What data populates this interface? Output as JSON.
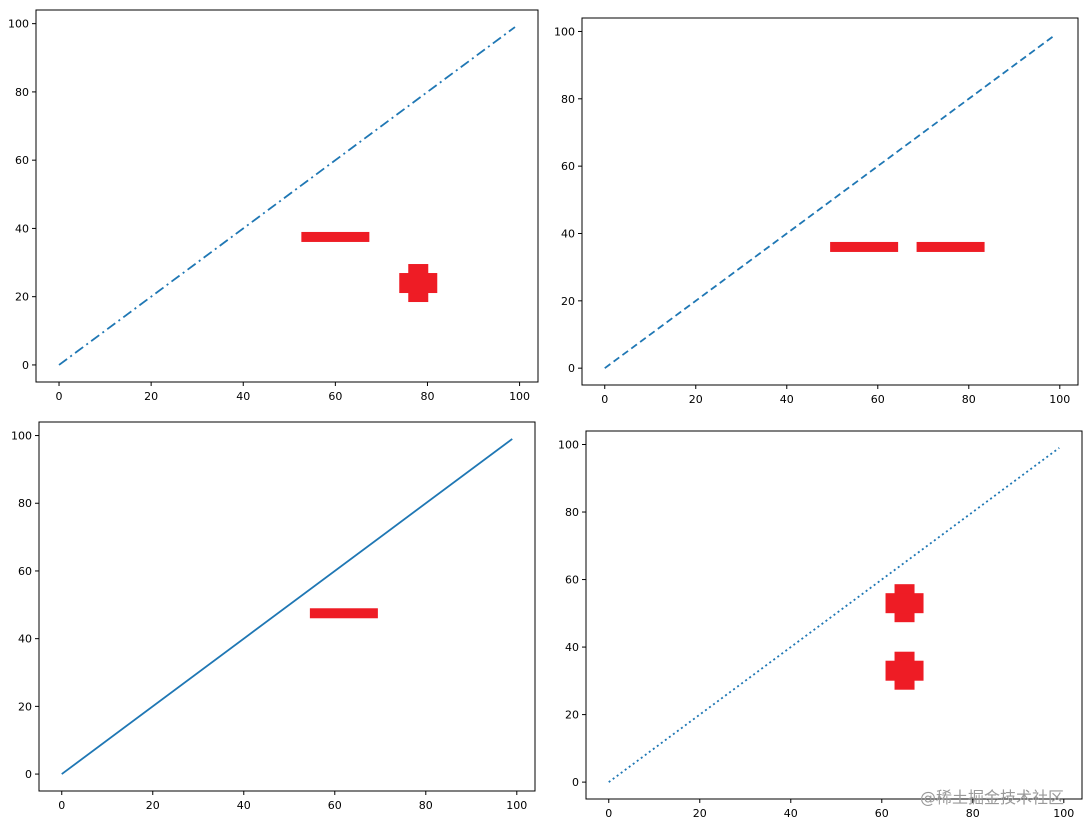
{
  "series_color": "#1f77b4",
  "mark_color": "#ee1c25",
  "watermark": "@稀土掘金技术社区",
  "chart_data": [
    {
      "type": "line",
      "linestyle": "dashdot",
      "x": [
        0,
        99
      ],
      "y": [
        0,
        99
      ],
      "xlim": [
        -5,
        104
      ],
      "ylim": [
        -5,
        104
      ],
      "xticks": [
        "0",
        "20",
        "40",
        "60",
        "80",
        "100"
      ],
      "yticks": [
        "0",
        "20",
        "40",
        "60",
        "80",
        "100"
      ],
      "marks": [
        {
          "shape": "minus",
          "x": 60,
          "y": 37.5
        },
        {
          "shape": "plus",
          "x": 78,
          "y": 24
        }
      ]
    },
    {
      "type": "line",
      "linestyle": "dashed",
      "x": [
        0,
        99
      ],
      "y": [
        0,
        99
      ],
      "xlim": [
        -5,
        104
      ],
      "ylim": [
        -5,
        104
      ],
      "xticks": [
        "0",
        "20",
        "40",
        "60",
        "80",
        "100"
      ],
      "yticks": [
        "0",
        "20",
        "40",
        "60",
        "80",
        "100"
      ],
      "marks": [
        {
          "shape": "minus",
          "x": 57,
          "y": 36
        },
        {
          "shape": "minus",
          "x": 76,
          "y": 36
        }
      ]
    },
    {
      "type": "line",
      "linestyle": "solid",
      "x": [
        0,
        99
      ],
      "y": [
        0,
        99
      ],
      "xlim": [
        -5,
        104
      ],
      "ylim": [
        -5,
        104
      ],
      "xticks": [
        "0",
        "20",
        "40",
        "60",
        "80",
        "100"
      ],
      "yticks": [
        "0",
        "20",
        "40",
        "60",
        "80",
        "100"
      ],
      "marks": [
        {
          "shape": "minus",
          "x": 62,
          "y": 47.5
        }
      ]
    },
    {
      "type": "line",
      "linestyle": "dotted",
      "x": [
        0,
        99
      ],
      "y": [
        0,
        99
      ],
      "xlim": [
        -5,
        104
      ],
      "ylim": [
        -5,
        104
      ],
      "xticks": [
        "0",
        "20",
        "40",
        "60",
        "80",
        "100"
      ],
      "yticks": [
        "0",
        "20",
        "40",
        "60",
        "80",
        "100"
      ],
      "marks": [
        {
          "shape": "plus",
          "x": 65,
          "y": 53
        },
        {
          "shape": "plus",
          "x": 65,
          "y": 33
        }
      ]
    }
  ]
}
